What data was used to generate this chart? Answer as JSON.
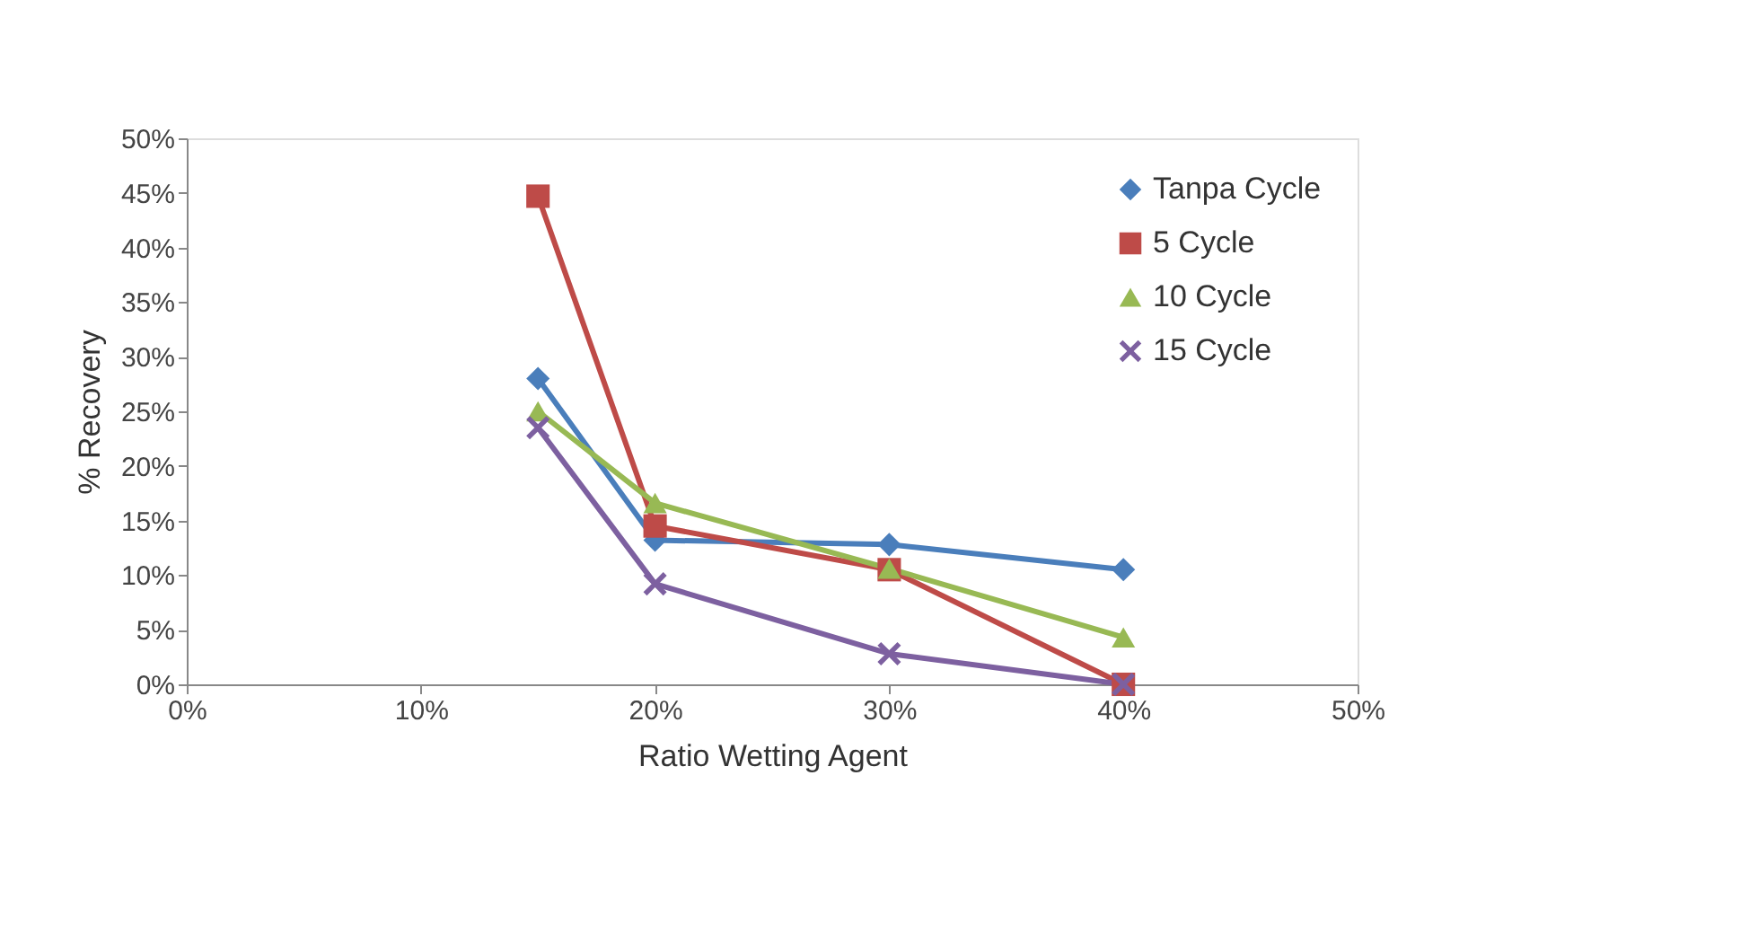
{
  "chart_data": {
    "type": "line",
    "xlabel": "Ratio Wetting Agent",
    "ylabel": "% Recovery",
    "x": [
      15,
      20,
      30,
      40
    ],
    "series": [
      {
        "name": "Tanpa Cycle",
        "color": "#4a7ebb",
        "marker": "diamond",
        "values": [
          28,
          13.2,
          12.8,
          10.5
        ]
      },
      {
        "name": "5 Cycle",
        "color": "#be4b48",
        "marker": "square",
        "values": [
          44.7,
          14.5,
          10.5,
          0
        ]
      },
      {
        "name": "10 Cycle",
        "color": "#98b954",
        "marker": "triangle",
        "values": [
          25,
          16.6,
          10.6,
          4.3
        ]
      },
      {
        "name": "15 Cycle",
        "color": "#7d60a0",
        "marker": "cross",
        "values": [
          23.5,
          9.2,
          2.8,
          0
        ]
      }
    ],
    "xlim": [
      0,
      50
    ],
    "xticks": [
      {
        "value": 0,
        "label": "0%"
      },
      {
        "value": 10,
        "label": "10%"
      },
      {
        "value": 20,
        "label": "20%"
      },
      {
        "value": 30,
        "label": "30%"
      },
      {
        "value": 40,
        "label": "40%"
      },
      {
        "value": 50,
        "label": "50%"
      }
    ],
    "ylim": [
      0,
      50
    ],
    "yticks": [
      {
        "value": 0,
        "label": "0%"
      },
      {
        "value": 5,
        "label": "5%"
      },
      {
        "value": 10,
        "label": "10%"
      },
      {
        "value": 15,
        "label": "15%"
      },
      {
        "value": 20,
        "label": "20%"
      },
      {
        "value": 25,
        "label": "25%"
      },
      {
        "value": 30,
        "label": "30%"
      },
      {
        "value": 35,
        "label": "35%"
      },
      {
        "value": 40,
        "label": "40%"
      },
      {
        "value": 45,
        "label": "45%"
      },
      {
        "value": 50,
        "label": "50%"
      }
    ],
    "grid": false,
    "legend": "top right",
    "line_style": "solid"
  }
}
